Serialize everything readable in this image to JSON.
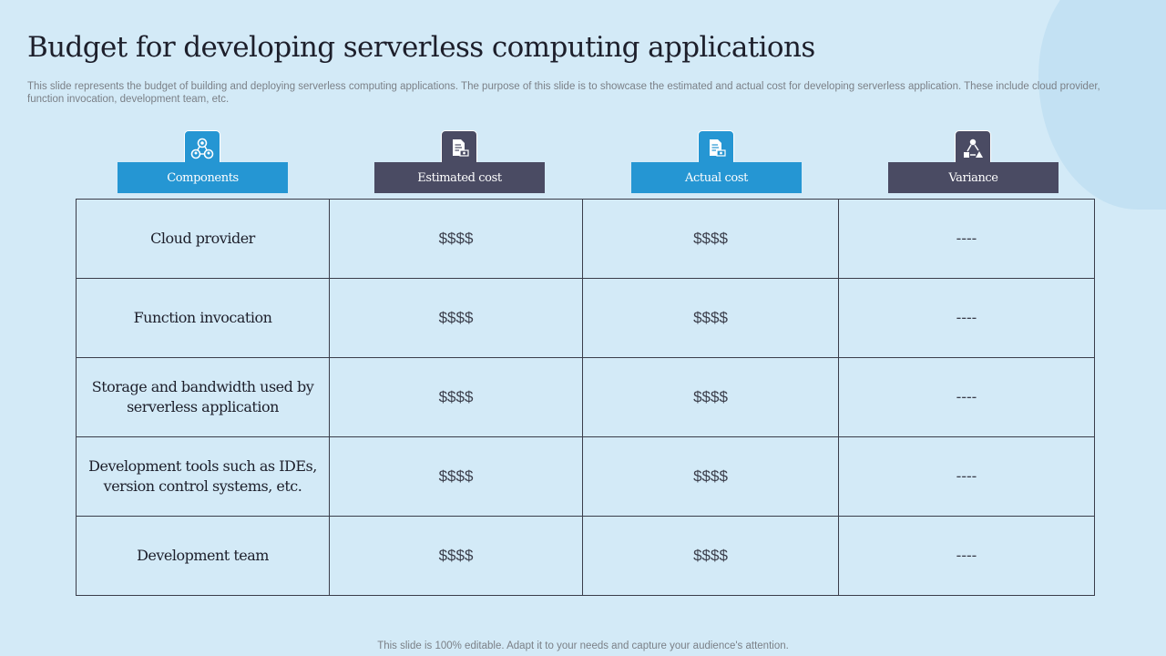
{
  "title": "Budget for developing serverless computing applications",
  "subtitle": "This slide represents the budget of building and deploying serverless computing applications. The purpose of this slide is to showcase the estimated and actual cost for developing serverless application. These include cloud provider, function invocation, development team, etc.",
  "columns": [
    {
      "label": "Components",
      "icon": "team-network-icon",
      "color": "#2596d3"
    },
    {
      "label": "Estimated cost",
      "icon": "document-money-icon",
      "color": "#4a4b63"
    },
    {
      "label": "Actual cost",
      "icon": "document-money-icon",
      "color": "#2596d3"
    },
    {
      "label": "Variance",
      "icon": "variance-icon",
      "color": "#4a4b63"
    }
  ],
  "rows": [
    {
      "component": "Cloud provider",
      "estimated": "$$$$",
      "actual": "$$$$",
      "variance": "----"
    },
    {
      "component": "Function invocation",
      "estimated": "$$$$",
      "actual": "$$$$",
      "variance": "----"
    },
    {
      "component": "Storage and bandwidth used by serverless application",
      "estimated": "$$$$",
      "actual": "$$$$",
      "variance": "----"
    },
    {
      "component": "Development tools such as IDEs, version control systems, etc.",
      "estimated": "$$$$",
      "actual": "$$$$",
      "variance": "----"
    },
    {
      "component": "Development team",
      "estimated": "$$$$",
      "actual": "$$$$",
      "variance": "----"
    }
  ],
  "footer": "This slide is 100% editable. Adapt it to your needs and capture your audience's attention."
}
